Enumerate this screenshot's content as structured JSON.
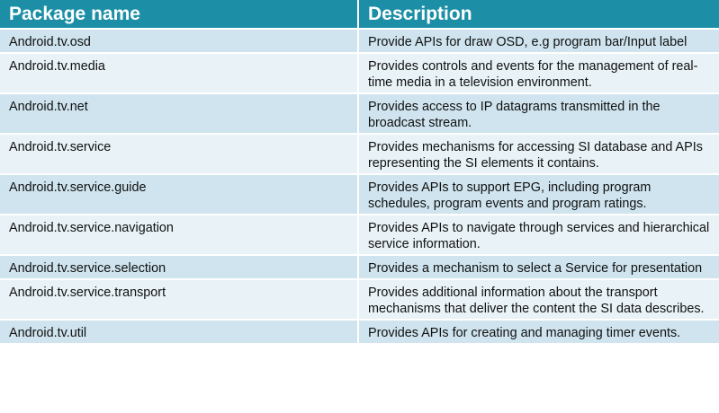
{
  "table": {
    "headers": [
      "Package name",
      "Description"
    ],
    "rows": [
      {
        "package": "Android.tv.osd",
        "description": "Provide APIs for  draw OSD, e.g program bar/Input label"
      },
      {
        "package": "Android.tv.media",
        "description": "Provides controls and events for the management of real-time media in a television environment."
      },
      {
        "package": "Android.tv.net",
        "description": "Provides access to IP datagrams transmitted in the broadcast stream."
      },
      {
        "package": "Android.tv.service",
        "description": "Provides mechanisms for accessing SI database and APIs representing the SI elements it contains."
      },
      {
        "package": "Android.tv.service.guide",
        "description": "Provides APIs to support  EPG, including program schedules, program events and program ratings."
      },
      {
        "package": "Android.tv.service.navigation",
        "description": "Provides APIs to navigate through services and hierarchical service information."
      },
      {
        "package": "Android.tv.service.selection",
        "description": "Provides a mechanism to select a Service for presentation"
      },
      {
        "package": "Android.tv.service.transport",
        "description": "Provides additional information about the transport mechanisms that deliver the content the SI data describes."
      },
      {
        "package": "Android.tv.util",
        "description": "Provides APIs for creating and managing timer events."
      }
    ]
  },
  "colors": {
    "header_bg": "#1c8fa6",
    "row_dark": "#cfe4ee",
    "row_light": "#e8f2f7"
  }
}
